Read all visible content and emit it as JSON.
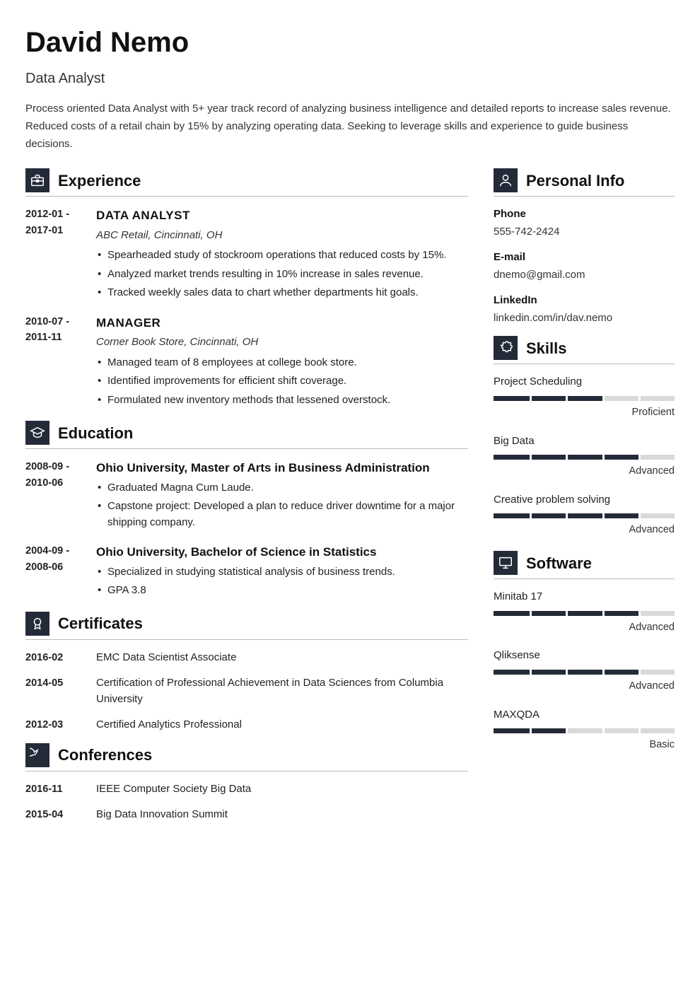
{
  "colors": {
    "accent": "#242a38",
    "bar_bg": "#d9d9d9",
    "text": "#222222",
    "heading": "#111111"
  },
  "header": {
    "name": "David Nemo",
    "title": "Data Analyst",
    "summary": "Process oriented Data Analyst with 5+ year track record of analyzing business intelligence and detailed reports to increase sales revenue. Reduced costs of a retail chain by 15% by analyzing operating data. Seeking to leverage skills and experience to guide business decisions."
  },
  "sections": {
    "experience": {
      "title": "Experience",
      "entries": [
        {
          "date": "2012-01 - 2017-01",
          "title": "DATA ANALYST",
          "sub": "ABC Retail, Cincinnati, OH",
          "bullets": [
            "Spearheaded study of stockroom operations that reduced costs by 15%.",
            "Analyzed market trends resulting in 10% increase in sales revenue.",
            "Tracked weekly sales data to chart whether departments hit goals."
          ]
        },
        {
          "date": "2010-07 - 2011-11",
          "title": "MANAGER",
          "sub": "Corner Book Store, Cincinnati, OH",
          "bullets": [
            "Managed team of 8 employees at college book store.",
            "Identified improvements for efficient shift coverage.",
            "Formulated new inventory methods that lessened overstock."
          ]
        }
      ]
    },
    "education": {
      "title": "Education",
      "entries": [
        {
          "date": "2008-09 - 2010-06",
          "title": "Ohio University, Master of Arts in Business Administration",
          "bullets": [
            "Graduated Magna Cum Laude.",
            "Capstone project: Developed a plan to reduce driver downtime for a major shipping company."
          ]
        },
        {
          "date": "2004-09 - 2008-06",
          "title": "Ohio University, Bachelor of Science in Statistics",
          "bullets": [
            "Specialized in studying statistical analysis of business trends.",
            "GPA 3.8"
          ]
        }
      ]
    },
    "certificates": {
      "title": "Certificates",
      "entries": [
        {
          "date": "2016-02",
          "text": "EMC Data Scientist Associate"
        },
        {
          "date": "2014-05",
          "text": "Certification of Professional Achievement in Data Sciences from Columbia University"
        },
        {
          "date": "2012-03",
          "text": "Certified Analytics Professional"
        }
      ]
    },
    "conferences": {
      "title": "Conferences",
      "entries": [
        {
          "date": "2016-11",
          "text": "IEEE Computer Society Big Data"
        },
        {
          "date": "2015-04",
          "text": "Big Data Innovation Summit"
        }
      ]
    }
  },
  "sidebar": {
    "personal_info": {
      "title": "Personal Info",
      "items": [
        {
          "label": "Phone",
          "value": "555-742-2424"
        },
        {
          "label": "E-mail",
          "value": "dnemo@gmail.com"
        },
        {
          "label": "LinkedIn",
          "value": "linkedin.com/in/dav.nemo"
        }
      ]
    },
    "skills": {
      "title": "Skills",
      "bar_segments": 5,
      "items": [
        {
          "name": "Project Scheduling",
          "level_label": "Proficient",
          "fill_percent": 60
        },
        {
          "name": "Big Data",
          "level_label": "Advanced",
          "fill_percent": 80
        },
        {
          "name": "Creative problem solving",
          "level_label": "Advanced",
          "fill_percent": 80
        }
      ]
    },
    "software": {
      "title": "Software",
      "bar_segments": 5,
      "items": [
        {
          "name": "Minitab 17",
          "level_label": "Advanced",
          "fill_percent": 80
        },
        {
          "name": "Qliksense",
          "level_label": "Advanced",
          "fill_percent": 80
        },
        {
          "name": "MAXQDA",
          "level_label": "Basic",
          "fill_percent": 40
        }
      ]
    }
  }
}
